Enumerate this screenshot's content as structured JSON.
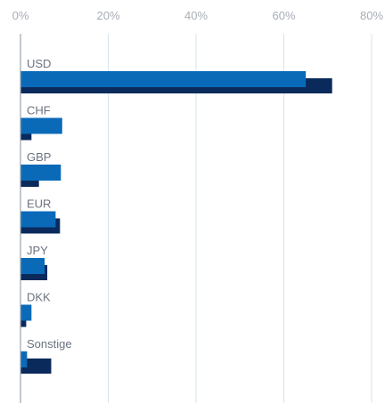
{
  "chart_data": {
    "type": "bar",
    "orientation": "horizontal",
    "categories": [
      "USD",
      "CHF",
      "GBP",
      "EUR",
      "JPY",
      "DKK",
      "Sonstige"
    ],
    "series": [
      {
        "values": [
          65.0,
          9.5,
          9.2,
          8.0,
          5.5,
          2.5,
          1.5
        ],
        "color": "#0a6ab8"
      },
      {
        "values": [
          71.0,
          2.5,
          4.2,
          9.0,
          6.1,
          1.3,
          7.0
        ],
        "color": "#0a2a5c"
      }
    ],
    "xlim": [
      0,
      80
    ],
    "xticks": [
      0,
      20,
      40,
      60,
      80
    ],
    "tick_labels": [
      "0%",
      "20%",
      "40%",
      "60%",
      "80%"
    ],
    "grid": true,
    "legend": "none",
    "title": "",
    "xlabel": "",
    "ylabel": ""
  }
}
